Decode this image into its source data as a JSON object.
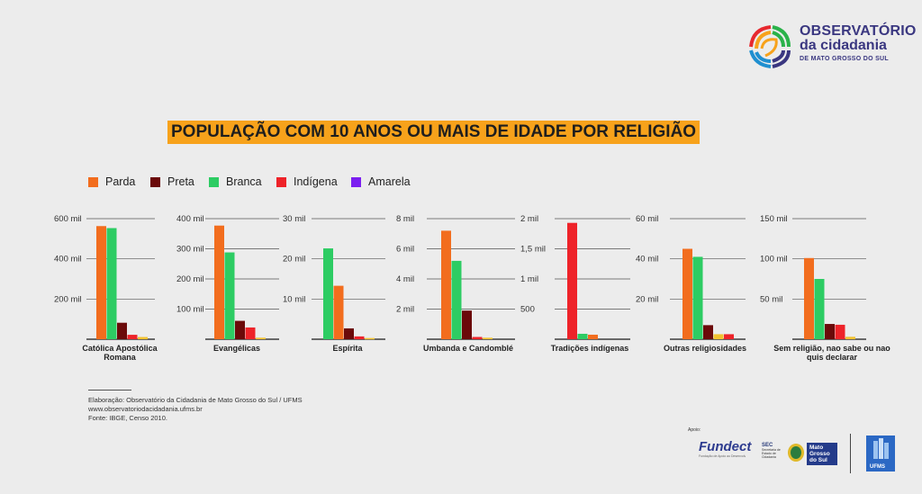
{
  "logo": {
    "line1": "OBSERVATÓRIO",
    "line2": "da cidadania",
    "line3": "DE MATO GROSSO DO SUL",
    "colors": [
      "#e7292f",
      "#f7a21b",
      "#2ab24a",
      "#1f8fd0",
      "#3a3780"
    ]
  },
  "title": "POPULAÇÃO COM 10 ANOS OU MAIS DE IDADE POR RELIGIÃO",
  "colors": {
    "title_bg": "#f7a21b",
    "grid": "#3a3a3a"
  },
  "legend": [
    {
      "label": "Parda",
      "color": "#f26d1e"
    },
    {
      "label": "Preta",
      "color": "#6b0a0a"
    },
    {
      "label": "Branca",
      "color": "#2dcc63"
    },
    {
      "label": "Indígena",
      "color": "#ee2329"
    },
    {
      "label": "Amarela",
      "color": "#7b1ff0"
    }
  ],
  "chart_data": [
    {
      "type": "bar",
      "category": "Católica Apostólica Romana",
      "series": [
        "Parda",
        "Branca",
        "Preta",
        "Indígena",
        "Amarela"
      ],
      "values": [
        563000,
        553000,
        82000,
        22000,
        11000
      ],
      "ylim": [
        0,
        600000
      ],
      "yticks": [
        0,
        200000,
        400000,
        600000
      ],
      "ytick_labels": [
        "",
        "200 mil",
        "400 mil",
        "600 mil"
      ],
      "bar_colors": [
        "#f26d1e",
        "#2dcc63",
        "#6b0a0a",
        "#ee2329",
        "#f2c12e"
      ]
    },
    {
      "type": "bar",
      "category": "Evangélicas",
      "series": [
        "Parda",
        "Branca",
        "Preta",
        "Indígena",
        "Amarela"
      ],
      "values": [
        377000,
        288000,
        61000,
        39000,
        5000
      ],
      "ylim": [
        0,
        400000
      ],
      "yticks": [
        0,
        100000,
        200000,
        300000,
        400000
      ],
      "ytick_labels": [
        "",
        "100 mil",
        "200 mil",
        "300 mil",
        "400 mil"
      ],
      "bar_colors": [
        "#f26d1e",
        "#2dcc63",
        "#6b0a0a",
        "#ee2329",
        "#f2c12e"
      ]
    },
    {
      "type": "bar",
      "category": "Espírita",
      "series": [
        "Branca",
        "Parda",
        "Preta",
        "Indígena",
        "Amarela"
      ],
      "values": [
        22600,
        13300,
        2700,
        700,
        300
      ],
      "ylim": [
        0,
        30000
      ],
      "yticks": [
        0,
        10000,
        20000,
        30000
      ],
      "ytick_labels": [
        "",
        "10 mil",
        "20 mil",
        "30 mil"
      ],
      "bar_colors": [
        "#2dcc63",
        "#f26d1e",
        "#6b0a0a",
        "#ee2329",
        "#f2c12e"
      ]
    },
    {
      "type": "bar",
      "category": "Umbanda e Candomblé",
      "series": [
        "Parda",
        "Branca",
        "Preta",
        "Indígena",
        "Amarela"
      ],
      "values": [
        7200,
        5200,
        1900,
        150,
        100
      ],
      "ylim": [
        0,
        8000
      ],
      "yticks": [
        0,
        2000,
        4000,
        6000,
        8000
      ],
      "ytick_labels": [
        "",
        "2 mil",
        "4 mil",
        "6 mil",
        "8  mil"
      ],
      "bar_colors": [
        "#f26d1e",
        "#2dcc63",
        "#6b0a0a",
        "#ee2329",
        "#f2c12e"
      ]
    },
    {
      "type": "bar",
      "category": "Tradições indígenas",
      "series": [
        "Indígena",
        "Branca",
        "Parda"
      ],
      "values": [
        1930,
        90,
        75
      ],
      "ylim": [
        0,
        2000
      ],
      "yticks": [
        0,
        500,
        1000,
        1500,
        2000
      ],
      "ytick_labels": [
        "",
        "500",
        "1 mil",
        "1,5 mil",
        "2 mil"
      ],
      "bar_colors": [
        "#ee2329",
        "#2dcc63",
        "#f26d1e"
      ]
    },
    {
      "type": "bar",
      "category": "Outras religiosidades",
      "series": [
        "Parda",
        "Branca",
        "Preta",
        "Amarela",
        "Indígena"
      ],
      "values": [
        45000,
        41000,
        7000,
        2500,
        2500
      ],
      "ylim": [
        0,
        60000
      ],
      "yticks": [
        0,
        20000,
        40000,
        60000
      ],
      "ytick_labels": [
        "",
        "20 mil",
        "40 mil",
        "60 mil"
      ],
      "bar_colors": [
        "#f26d1e",
        "#2dcc63",
        "#6b0a0a",
        "#f2c12e",
        "#ee2329"
      ]
    },
    {
      "type": "bar",
      "category": "Sem religião, nao sabe ou nao quis declarar",
      "series": [
        "Parda",
        "Branca",
        "Preta",
        "Indígena",
        "Amarela"
      ],
      "values": [
        101000,
        75000,
        19000,
        18000,
        3000
      ],
      "ylim": [
        0,
        150000
      ],
      "yticks": [
        0,
        50000,
        100000,
        150000
      ],
      "ytick_labels": [
        "",
        "50 mil",
        "100 mil",
        "150 mil"
      ],
      "bar_colors": [
        "#f26d1e",
        "#2dcc63",
        "#6b0a0a",
        "#ee2329",
        "#f2c12e"
      ]
    }
  ],
  "footer": {
    "line1": "Elaboração: Observatório da Cidadania de Mato Grosso do Sul / UFMS",
    "line2": "www.observatoriodacidadania.ufms.br",
    "line3": "Fonte: IBGE, Censo 2010."
  },
  "sponsors": {
    "apoio": "Apoio:",
    "fundect": "Fundect",
    "fundect_sub": "Fundação de Apoio ao Desenvolvimento do Ensino, Ciência e Tecnologia do Estado de Mato Grosso do Sul",
    "sec": "SEC",
    "sec_sub": "Secretaria de Estado de Cidadania",
    "gov": "Mato Grosso do Sul",
    "ufms": "UFMS"
  }
}
